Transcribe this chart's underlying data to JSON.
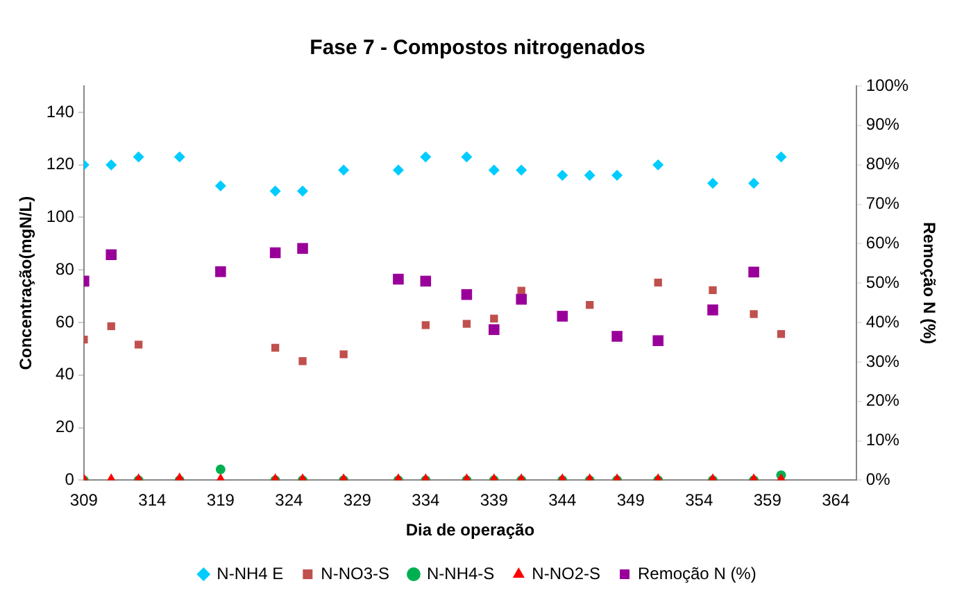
{
  "chart_data": {
    "type": "scatter",
    "title": "Fase 7 - Compostos nitrogenados",
    "xlabel": "Dia de operação",
    "ylabel": "Concentração(mgN/L)",
    "y2label": "Remoção N (%)",
    "x": [
      309,
      311,
      313,
      316,
      319,
      323,
      325,
      328,
      332,
      334,
      337,
      339,
      341,
      344,
      346,
      348,
      351,
      355,
      358,
      360
    ],
    "series": [
      {
        "name": "N-NH4 E",
        "color": "#00ccff",
        "marker": "diamond",
        "values": [
          120,
          120,
          123,
          123,
          112,
          110,
          110,
          118,
          118,
          123,
          123,
          118,
          118,
          116,
          116,
          116,
          120,
          113,
          113,
          123
        ]
      },
      {
        "name": "N-NO3-S",
        "color": "#c0504d",
        "marker": "square",
        "values": [
          53.5,
          58.6,
          51.6,
          null,
          null,
          50.4,
          45.3,
          47.9,
          null,
          59.0,
          59.5,
          61.5,
          72.1,
          null,
          66.7,
          null,
          75.2,
          72.3,
          63.2,
          55.6
        ]
      },
      {
        "name": "N-NH4-S",
        "color": "#00b050",
        "marker": "circle",
        "values": [
          0,
          null,
          0,
          0,
          4.1,
          0,
          0,
          0,
          0,
          0,
          0,
          0,
          0,
          0,
          0,
          0,
          0,
          0,
          0,
          1.9
        ]
      },
      {
        "name": "N-NO2-S",
        "color": "#ff0000",
        "marker": "triangle",
        "values": [
          0.5,
          0.5,
          0.5,
          0.8,
          0.5,
          0.5,
          0.5,
          0.5,
          0.5,
          0.5,
          0.5,
          0.5,
          0.5,
          0.5,
          0.5,
          0.5,
          0.5,
          0.5,
          0.5,
          0.5
        ]
      },
      {
        "name": "Remoção N (%)",
        "color": "#990099",
        "marker": "square",
        "axis": "y2",
        "values": [
          50.5,
          57.2,
          null,
          null,
          52.9,
          57.7,
          58.8,
          null,
          51.0,
          50.5,
          47.1,
          38.2,
          45.9,
          41.6,
          null,
          36.5,
          35.4,
          43.2,
          52.8,
          null
        ]
      }
    ],
    "xlim": [
      309,
      365.5
    ],
    "xticks": [
      309,
      314,
      319,
      324,
      329,
      334,
      339,
      344,
      349,
      354,
      359,
      364
    ],
    "ylim": [
      0,
      150
    ],
    "yticks": [
      0,
      20,
      40,
      60,
      80,
      100,
      120,
      140
    ],
    "y2lim": [
      0,
      100
    ],
    "y2ticks": [
      {
        "value": 0,
        "label": "0%"
      },
      {
        "value": 10,
        "label": "10%"
      },
      {
        "value": 20,
        "label": "20%"
      },
      {
        "value": 30,
        "label": "30%"
      },
      {
        "value": 40,
        "label": "40%"
      },
      {
        "value": 50,
        "label": "50%"
      },
      {
        "value": 60,
        "label": "60%"
      },
      {
        "value": 70,
        "label": "70%"
      },
      {
        "value": 80,
        "label": "80%"
      },
      {
        "value": 90,
        "label": "90%"
      },
      {
        "value": 100,
        "label": "100%"
      }
    ],
    "grid": false,
    "legend": "bottom"
  }
}
